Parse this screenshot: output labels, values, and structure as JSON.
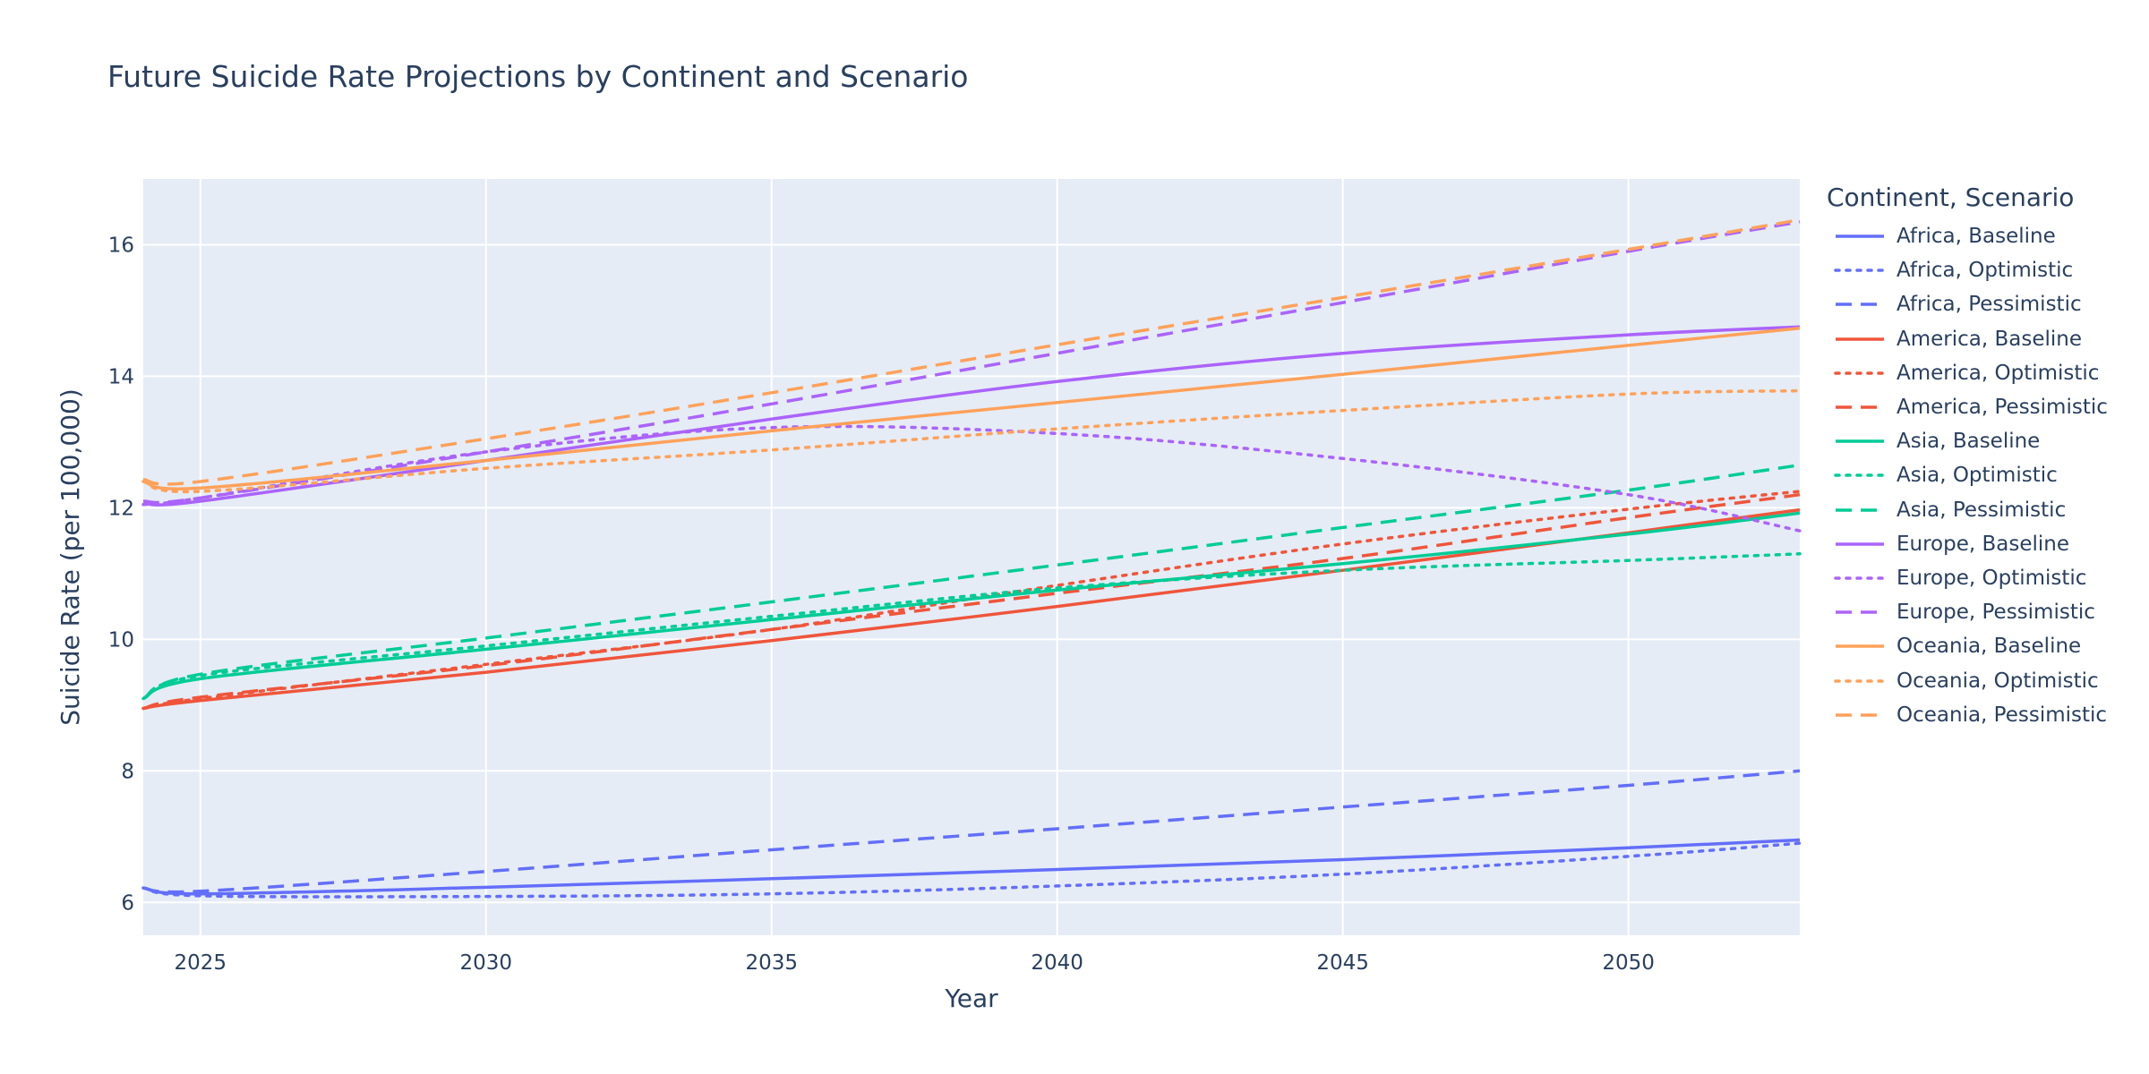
{
  "chart_data": {
    "type": "line",
    "title": "Future Suicide Rate Projections by Continent and Scenario",
    "xlabel": "Year",
    "ylabel": "Suicide Rate (per 100,000)",
    "xlim": [
      2024,
      2053
    ],
    "ylim": [
      5.5,
      17
    ],
    "x_ticks": [
      2025,
      2030,
      2035,
      2040,
      2045,
      2050
    ],
    "y_ticks": [
      6,
      8,
      10,
      12,
      14,
      16
    ],
    "grid": true,
    "legend_title": "Continent, Scenario",
    "legend_position": "right",
    "x": [
      2024,
      2025,
      2030,
      2035,
      2040,
      2045,
      2050,
      2053
    ],
    "series": [
      {
        "name": "Africa, Baseline",
        "color": "#636efa",
        "dash": "solid",
        "values": [
          6.22,
          6.13,
          6.23,
          6.36,
          6.5,
          6.65,
          6.83,
          6.95
        ]
      },
      {
        "name": "Africa, Optimistic",
        "color": "#636efa",
        "dash": "dot",
        "values": [
          6.22,
          6.1,
          6.09,
          6.13,
          6.25,
          6.43,
          6.7,
          6.9
        ]
      },
      {
        "name": "Africa, Pessimistic",
        "color": "#636efa",
        "dash": "dash",
        "values": [
          6.22,
          6.17,
          6.47,
          6.8,
          7.12,
          7.45,
          7.78,
          8.0
        ]
      },
      {
        "name": "America, Baseline",
        "color": "#ef553b",
        "dash": "solid",
        "values": [
          8.95,
          9.07,
          9.5,
          9.98,
          10.5,
          11.05,
          11.62,
          11.97
        ]
      },
      {
        "name": "America, Optimistic",
        "color": "#ef553b",
        "dash": "dot",
        "values": [
          8.95,
          9.1,
          9.62,
          10.15,
          10.82,
          11.45,
          11.98,
          12.25
        ]
      },
      {
        "name": "America, Pessimistic",
        "color": "#ef553b",
        "dash": "dash",
        "values": [
          8.95,
          9.12,
          9.6,
          10.15,
          10.7,
          11.23,
          11.85,
          12.2
        ]
      },
      {
        "name": "Asia, Baseline",
        "color": "#00cc96",
        "dash": "solid",
        "values": [
          9.1,
          9.4,
          9.85,
          10.3,
          10.75,
          11.15,
          11.6,
          11.92
        ]
      },
      {
        "name": "Asia, Optimistic",
        "color": "#00cc96",
        "dash": "dot",
        "values": [
          9.1,
          9.45,
          9.9,
          10.35,
          10.78,
          11.05,
          11.2,
          11.3
        ]
      },
      {
        "name": "Asia, Pessimistic",
        "color": "#00cc96",
        "dash": "dash",
        "values": [
          9.1,
          9.47,
          10.02,
          10.57,
          11.13,
          11.7,
          12.27,
          12.65
        ]
      },
      {
        "name": "Europe, Baseline",
        "color": "#ab63fa",
        "dash": "solid",
        "values": [
          12.07,
          12.1,
          12.72,
          13.35,
          13.92,
          14.35,
          14.63,
          14.75
        ]
      },
      {
        "name": "Europe, Optimistic",
        "color": "#ab63fa",
        "dash": "dot",
        "values": [
          12.05,
          12.15,
          12.85,
          13.22,
          13.13,
          12.75,
          12.2,
          11.65
        ]
      },
      {
        "name": "Europe, Pessimistic",
        "color": "#ab63fa",
        "dash": "dash",
        "values": [
          12.1,
          12.15,
          12.85,
          13.58,
          14.35,
          15.12,
          15.9,
          16.35
        ]
      },
      {
        "name": "Oceania, Baseline",
        "color": "#ffa15a",
        "dash": "solid",
        "values": [
          12.4,
          12.3,
          12.72,
          13.17,
          13.6,
          14.03,
          14.47,
          14.73
        ]
      },
      {
        "name": "Oceania, Optimistic",
        "color": "#ffa15a",
        "dash": "dot",
        "values": [
          12.4,
          12.25,
          12.6,
          12.88,
          13.2,
          13.48,
          13.73,
          13.78
        ]
      },
      {
        "name": "Oceania, Pessimistic",
        "color": "#ffa15a",
        "dash": "dash",
        "values": [
          12.43,
          12.4,
          13.05,
          13.75,
          14.48,
          15.2,
          15.93,
          16.38
        ]
      }
    ]
  }
}
